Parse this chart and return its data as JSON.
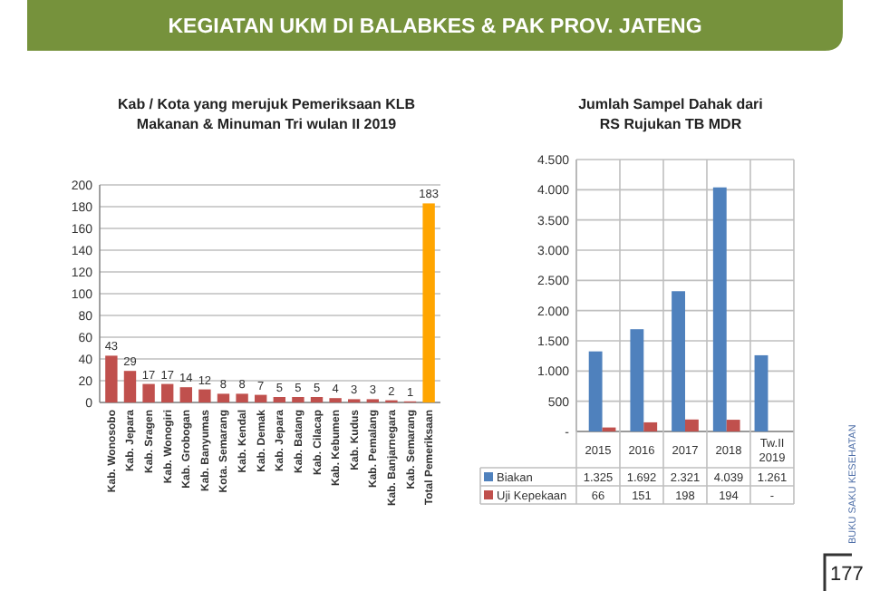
{
  "chart_data": [
    {
      "type": "bar",
      "title": "Kab / Kota yang merujuk Pemeriksaan KLB Makanan & Minuman Tri wulan II 2019",
      "annotations": [
        "KEGIATAN UKM DI BALABKES & PAK PROV. JATENG"
      ],
      "categories": [
        "Kab. Wonosobo",
        "Kab. Jepara",
        "Kab. Sragen",
        "Kab. Wonogiri",
        "Kab. Grobogan",
        "Kab. Banyumas",
        "Kota. Semarang",
        "Kab. Kendal",
        "Kab. Demak",
        "Kab. Jepara",
        "Kab. Batang",
        "Kab. Cilacap",
        "Kab. Kebumen",
        "Kab. Kudus",
        "Kab. Pemalang",
        "Kab. Banjarnegara",
        "Kab. Semarang",
        "Total Pemeriksaan"
      ],
      "values": [
        43,
        29,
        17,
        17,
        14,
        12,
        8,
        8,
        7,
        5,
        5,
        5,
        4,
        3,
        3,
        2,
        1,
        183
      ],
      "colors": [
        "#c0504d",
        "#c0504d",
        "#c0504d",
        "#c0504d",
        "#c0504d",
        "#c0504d",
        "#c0504d",
        "#c0504d",
        "#c0504d",
        "#c0504d",
        "#c0504d",
        "#c0504d",
        "#c0504d",
        "#c0504d",
        "#c0504d",
        "#c0504d",
        "#c0504d",
        "#ffa500"
      ],
      "ylim": [
        0,
        200
      ],
      "yticks": [
        0,
        20,
        40,
        60,
        80,
        100,
        120,
        140,
        160,
        180,
        200
      ],
      "grid": "y",
      "data_labels": true
    },
    {
      "type": "bar",
      "title": "Jumlah Sampel Dahak dari RS Rujukan TB MDR",
      "annotations": [
        "BUKU SAKU KESEHATAN",
        "177"
      ],
      "categories": [
        "2015",
        "2016",
        "2017",
        "2018",
        "Tw.II 2019"
      ],
      "series": [
        {
          "name": "Biakan",
          "color": "#4f81bd",
          "values": [
            1325,
            1692,
            2321,
            4039,
            1261
          ],
          "value_labels": [
            "1.325",
            "1.692",
            "2.321",
            "4.039",
            "1.261"
          ]
        },
        {
          "name": "Uji Kepekaan",
          "color": "#c0504d",
          "values": [
            66,
            151,
            198,
            194,
            null
          ],
          "value_labels": [
            "66",
            "151",
            "198",
            "194",
            "-"
          ]
        }
      ],
      "ylim": [
        0,
        4500
      ],
      "yticks": [
        {
          "value": 0,
          "label": "-"
        },
        {
          "value": 500,
          "label": "500"
        },
        {
          "value": 1000,
          "label": "1.000"
        },
        {
          "value": 1500,
          "label": "1.500"
        },
        {
          "value": 2000,
          "label": "2.000"
        },
        {
          "value": 2500,
          "label": "2.500"
        },
        {
          "value": 3000,
          "label": "3.000"
        },
        {
          "value": 3500,
          "label": "3.500"
        },
        {
          "value": 4000,
          "label": "4.000"
        },
        {
          "value": 4500,
          "label": "4.500"
        }
      ],
      "grid": "y",
      "legend": "bottom"
    }
  ]
}
